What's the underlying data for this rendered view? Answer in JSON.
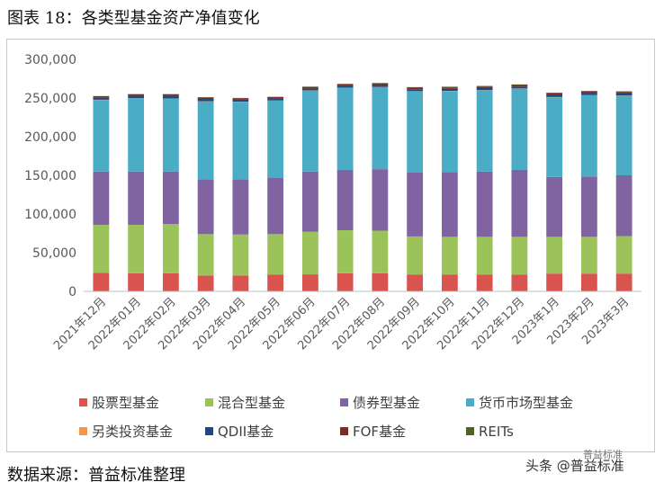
{
  "figure": {
    "title": "图表 18：各类型基金资产净值变化",
    "source": "数据来源：普益标准整理",
    "watermark_main": "头条 @普益标准",
    "watermark_sub": "普益标准"
  },
  "colors": {
    "股票型基金": "#d9534f",
    "混合型基金": "#9bc35a",
    "债券型基金": "#8064a2",
    "货币市场型基金": "#4bacc6",
    "另类投资基金": "#f79646",
    "QDII基金": "#1f497d",
    "FOF基金": "#7b2c27",
    "REITs": "#4f6228"
  },
  "chart_data": {
    "type": "bar",
    "stacked": true,
    "title": "",
    "xlabel": "",
    "ylabel": "",
    "ylim": [
      0,
      300000
    ],
    "yticks": [
      0,
      50000,
      100000,
      150000,
      200000,
      250000,
      300000
    ],
    "ytick_labels": [
      "0",
      "50,000",
      "100,000",
      "150,000",
      "200,000",
      "250,000",
      "300,000"
    ],
    "grid": false,
    "legend_position": "bottom",
    "categories": [
      "2021年12月",
      "2022年01月",
      "2022年02月",
      "2022年03月",
      "2022年04月",
      "2022年05月",
      "2022年06月",
      "2022年07月",
      "2022年08月",
      "2022年09月",
      "2022年10月",
      "2022年11月",
      "2022年12月",
      "2023年1月",
      "2023年2月",
      "2023年3月"
    ],
    "series": [
      {
        "name": "股票型基金",
        "values": [
          24000,
          23500,
          23500,
          20500,
          20500,
          21500,
          22000,
          23500,
          23500,
          21500,
          21500,
          21500,
          21500,
          23000,
          23000,
          23000
        ]
      },
      {
        "name": "混合型基金",
        "values": [
          62000,
          62500,
          63500,
          53500,
          53000,
          52500,
          55000,
          55500,
          55000,
          49500,
          49000,
          49000,
          49000,
          47500,
          47500,
          48500
        ]
      },
      {
        "name": "债券型基金",
        "values": [
          69000,
          69000,
          68000,
          71000,
          71500,
          72500,
          78000,
          78000,
          79500,
          82500,
          83500,
          84500,
          86500,
          77500,
          78000,
          78500
        ]
      },
      {
        "name": "货币市场型基金",
        "values": [
          92500,
          94500,
          94000,
          100500,
          100000,
          100000,
          104500,
          106000,
          106000,
          105000,
          105000,
          105000,
          105000,
          103000,
          105000,
          103000
        ]
      },
      {
        "name": "另类投资基金",
        "values": [
          300,
          300,
          300,
          300,
          300,
          300,
          300,
          300,
          300,
          300,
          300,
          300,
          300,
          300,
          300,
          300
        ]
      },
      {
        "name": "QDII基金",
        "values": [
          2500,
          3000,
          3500,
          3000,
          2500,
          2500,
          2500,
          2500,
          2500,
          2500,
          2500,
          2500,
          2500,
          2800,
          2500,
          2500
        ]
      },
      {
        "name": "FOF基金",
        "values": [
          2000,
          2000,
          2000,
          2000,
          2000,
          2000,
          2000,
          2000,
          2000,
          2000,
          2000,
          2000,
          2000,
          2000,
          2000,
          2000
        ]
      },
      {
        "name": "REITs",
        "values": [
          200,
          300,
          300,
          300,
          300,
          300,
          500,
          600,
          700,
          800,
          800,
          800,
          800,
          900,
          900,
          900
        ]
      }
    ]
  }
}
